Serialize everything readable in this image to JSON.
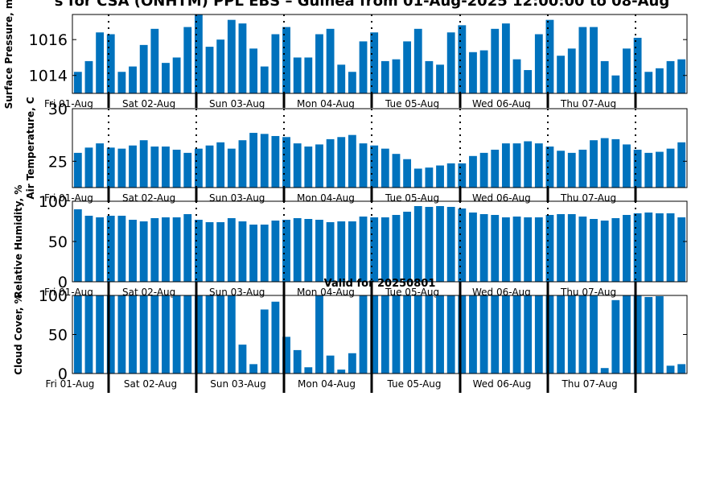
{
  "title": "s for CSA (ONHTM) PPL EBS – Guinea from 01-Aug-2025 12:00:00 to 08-Aug",
  "subtitle": "Valid for 20250801",
  "colors": {
    "bar": "#0072bd",
    "axis": "#000000"
  },
  "day_labels": [
    "Fri 01-Aug",
    "Sat 02-Aug",
    "Sun 03-Aug",
    "Mon 04-Aug",
    "Tue 05-Aug",
    "Wed 06-Aug",
    "Thu 07-Aug"
  ],
  "chart_data": [
    {
      "type": "bar",
      "ylabel": "Surface Pressure, m",
      "ylim": [
        1013.0,
        1017.4
      ],
      "yticks": [
        1014,
        1016
      ],
      "values": [
        1014.2,
        1014.8,
        1016.4,
        1016.3,
        1014.2,
        1014.5,
        1015.7,
        1016.6,
        1014.7,
        1015.0,
        1016.7,
        1017.4,
        1015.6,
        1016.0,
        1017.1,
        1016.9,
        1015.5,
        1014.5,
        1016.3,
        1016.7,
        1015.0,
        1015.0,
        1016.3,
        1016.6,
        1014.6,
        1014.2,
        1015.9,
        1016.4,
        1014.8,
        1014.9,
        1015.9,
        1016.6,
        1014.8,
        1014.6,
        1016.4,
        1016.8,
        1015.3,
        1015.4,
        1016.6,
        1016.9,
        1014.9,
        1014.3,
        1016.3,
        1017.1,
        1015.1,
        1015.5,
        1016.7,
        1016.7,
        1014.8,
        1014.0,
        1015.5,
        1016.1,
        1014.2,
        1014.4,
        1014.8,
        1014.9
      ]
    },
    {
      "type": "bar",
      "ylabel": "Air Temperature, C",
      "ylim": [
        22.5,
        30.0
      ],
      "yticks": [
        25,
        30
      ],
      "values": [
        25.8,
        26.3,
        26.7,
        26.3,
        26.2,
        26.5,
        27.0,
        26.4,
        26.4,
        26.1,
        25.8,
        26.2,
        26.5,
        26.8,
        26.2,
        27.0,
        27.7,
        27.6,
        27.4,
        27.3,
        26.7,
        26.4,
        26.6,
        27.1,
        27.3,
        27.5,
        26.7,
        26.5,
        26.2,
        25.7,
        25.2,
        24.3,
        24.4,
        24.6,
        24.8,
        24.8,
        25.5,
        25.8,
        26.1,
        26.7,
        26.7,
        26.9,
        26.7,
        26.4,
        26.0,
        25.8,
        26.1,
        27.0,
        27.2,
        27.1,
        26.6,
        26.1,
        25.8,
        25.9,
        26.2,
        26.8
      ]
    },
    {
      "type": "bar",
      "ylabel": "Relative Humidity, %",
      "ylim": [
        0,
        100
      ],
      "yticks": [
        0,
        50,
        100
      ],
      "values": [
        90,
        82,
        80,
        82,
        82,
        77,
        75,
        79,
        80,
        80,
        84,
        77,
        74,
        74,
        79,
        75,
        71,
        71,
        76,
        77,
        79,
        78,
        77,
        74,
        75,
        75,
        81,
        80,
        80,
        83,
        87,
        94,
        93,
        94,
        93,
        91,
        86,
        84,
        83,
        80,
        81,
        80,
        80,
        83,
        84,
        84,
        81,
        78,
        76,
        79,
        83,
        85,
        86,
        85,
        85,
        80
      ]
    },
    {
      "type": "bar",
      "ylabel": "Cloud Cover, %",
      "ylim": [
        0,
        100
      ],
      "yticks": [
        0,
        50,
        100
      ],
      "values": [
        100,
        100,
        100,
        100,
        100,
        100,
        100,
        100,
        100,
        100,
        100,
        100,
        100,
        100,
        100,
        37,
        12,
        82,
        92,
        47,
        30,
        8,
        100,
        23,
        5,
        26,
        100,
        100,
        100,
        100,
        100,
        100,
        100,
        100,
        100,
        100,
        100,
        100,
        100,
        100,
        100,
        100,
        100,
        100,
        100,
        100,
        100,
        100,
        7,
        94,
        100,
        100,
        98,
        99,
        10,
        12
      ]
    }
  ]
}
